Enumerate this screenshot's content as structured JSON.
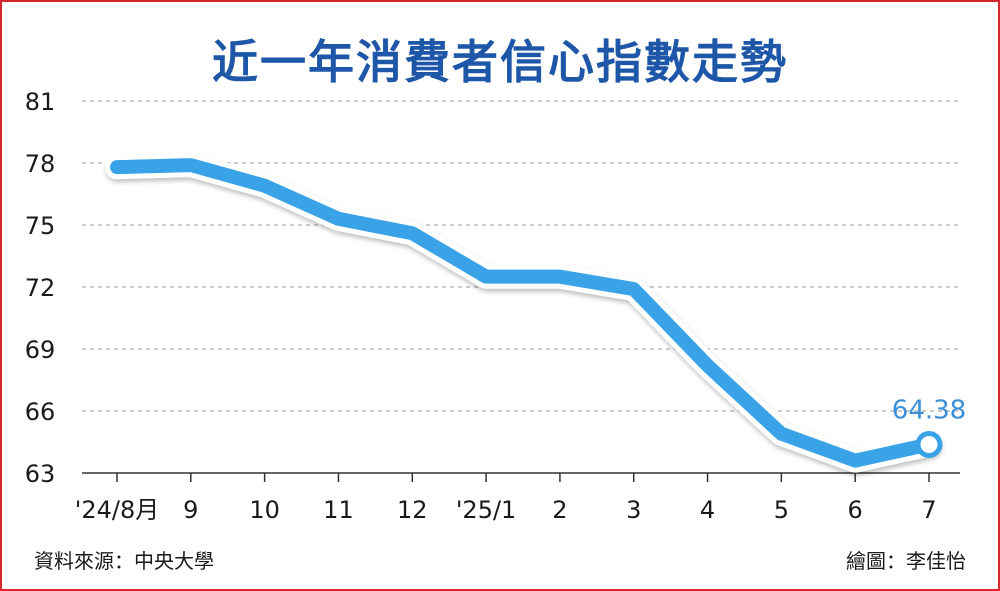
{
  "title": "近一年消費者信心指數走勢",
  "footer": {
    "source": "資料來源：中央大學",
    "credit": "繪圖：李佳怡"
  },
  "chart_data": {
    "type": "line",
    "categories": [
      "'24/8月",
      "9",
      "10",
      "11",
      "12",
      "'25/1",
      "2",
      "3",
      "4",
      "5",
      "6",
      "7"
    ],
    "series": [
      {
        "values": [
          77.8,
          77.9,
          76.9,
          75.3,
          74.6,
          72.5,
          72.5,
          71.9,
          68.2,
          64.9,
          63.6,
          64.38
        ]
      }
    ],
    "ylim": [
      63,
      81
    ],
    "yticks": [
      63,
      66,
      69,
      72,
      75,
      78,
      81
    ],
    "grid": true,
    "annotation": {
      "label": "64.38",
      "index": 11
    },
    "colors": {
      "line": "#3aa3e8",
      "title": "#1e56a8",
      "frame": "#d7262e"
    }
  }
}
